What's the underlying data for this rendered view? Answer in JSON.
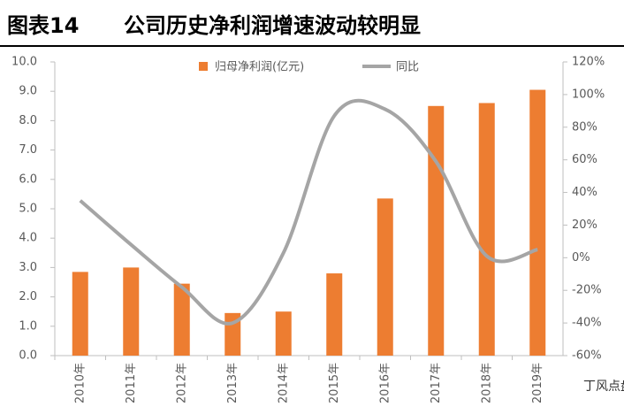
{
  "chart_data": {
    "type": "bar-line",
    "title_label": "图表14",
    "title": "公司历史净利润增速波动较明显",
    "categories": [
      "2010年",
      "2011年",
      "2012年",
      "2013年",
      "2014年",
      "2015年",
      "2016年",
      "2017年",
      "2018年",
      "2019年"
    ],
    "series": [
      {
        "name": "归母净利润(亿元)",
        "color": "#ed7d31",
        "type": "bar",
        "values": [
          2.85,
          3.0,
          2.45,
          1.45,
          1.5,
          2.8,
          5.35,
          8.5,
          8.6,
          9.05
        ]
      },
      {
        "name": "同比",
        "color": "#a5a5a5",
        "type": "line",
        "axis": "y2",
        "values": [
          35,
          8,
          -18,
          -40,
          3,
          87,
          91,
          59,
          1,
          5
        ]
      }
    ],
    "ylim": [
      0,
      10
    ],
    "yticks": [
      {
        "value": 0,
        "label": "0.0"
      },
      {
        "value": 1,
        "label": "1.0"
      },
      {
        "value": 2,
        "label": "2.0"
      },
      {
        "value": 3,
        "label": "3.0"
      },
      {
        "value": 4,
        "label": "4.0"
      },
      {
        "value": 5,
        "label": "5.0"
      },
      {
        "value": 6,
        "label": "6.0"
      },
      {
        "value": 7,
        "label": "7.0"
      },
      {
        "value": 8,
        "label": "8.0"
      },
      {
        "value": 9,
        "label": "9.0"
      },
      {
        "value": 10,
        "label": "10.0"
      }
    ],
    "y2lim": [
      -60,
      120
    ],
    "y2ticks": [
      {
        "value": -60,
        "label": "-60%"
      },
      {
        "value": -40,
        "label": "-40%"
      },
      {
        "value": -20,
        "label": "-20%"
      },
      {
        "value": 0,
        "label": "0%"
      },
      {
        "value": 20,
        "label": "20%"
      },
      {
        "value": 40,
        "label": "40%"
      },
      {
        "value": 60,
        "label": "60%"
      },
      {
        "value": 80,
        "label": "80%"
      },
      {
        "value": 100,
        "label": "100%"
      },
      {
        "value": 120,
        "label": "120%"
      }
    ],
    "grid": false,
    "legend": "top",
    "watermark": "丁风点盘"
  }
}
